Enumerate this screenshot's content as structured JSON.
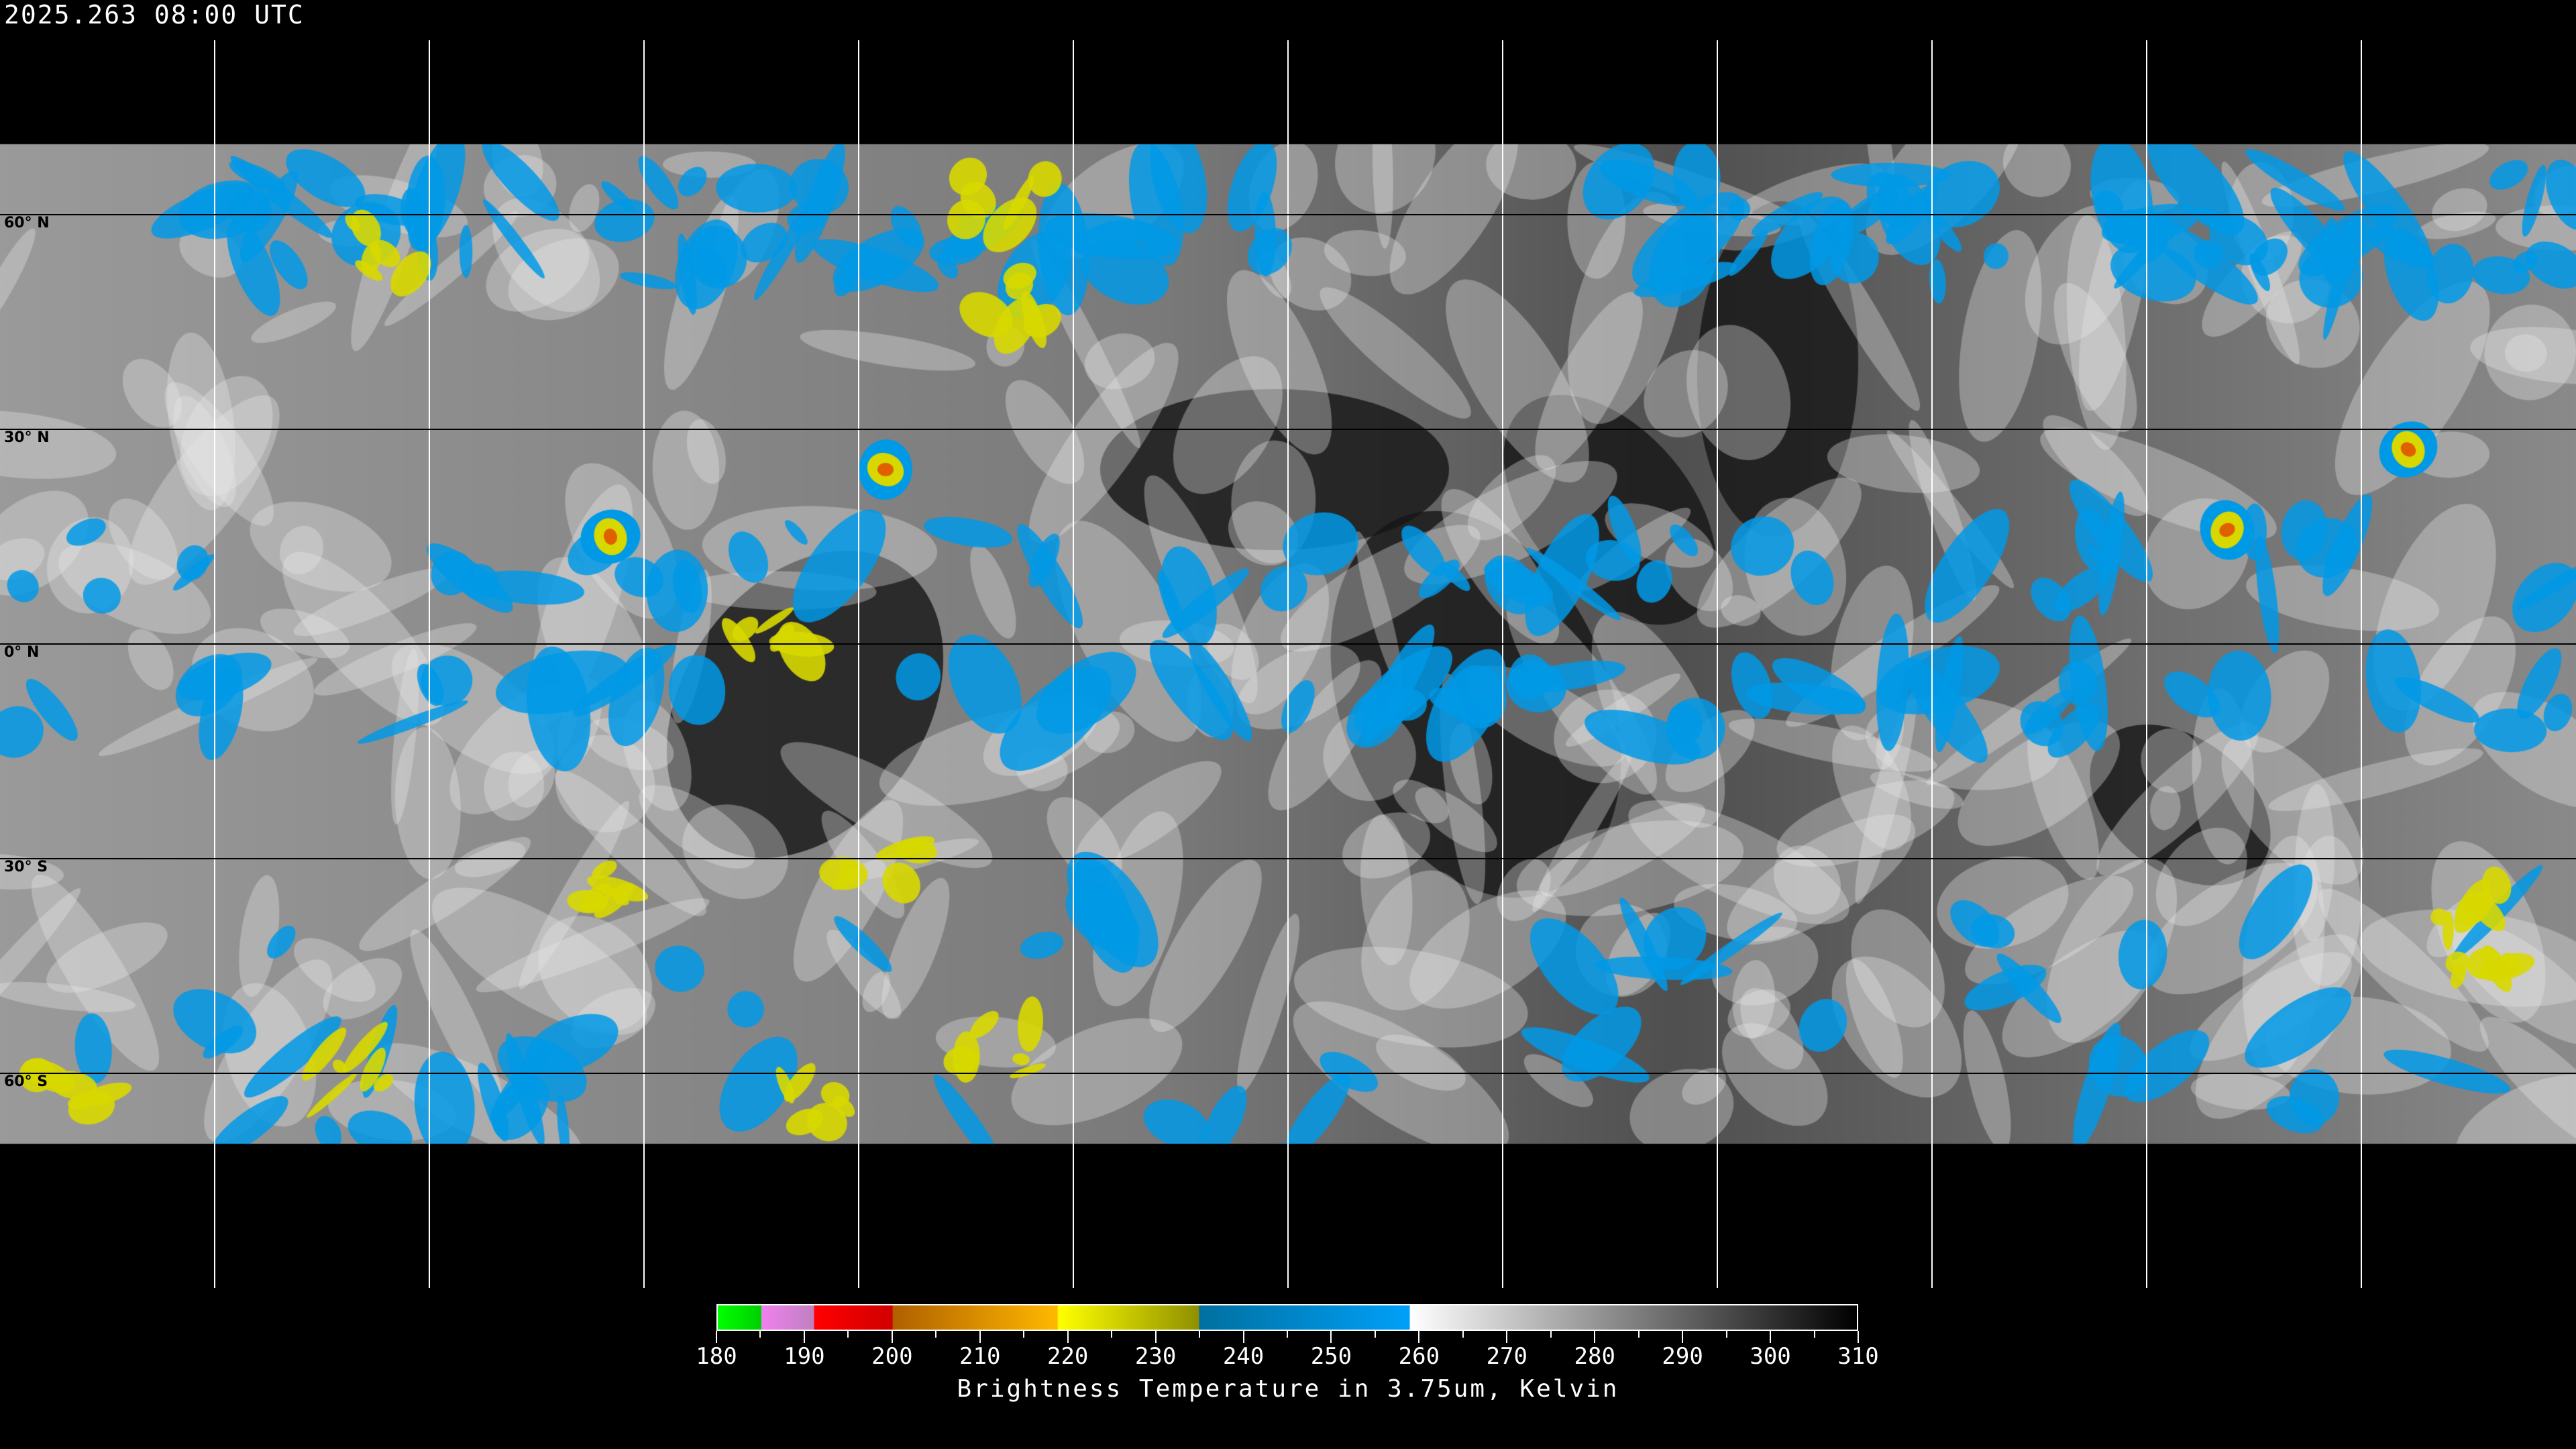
{
  "title": "2025.263 08:00 UTC",
  "latitude_labels": [
    "60° N",
    "30° N",
    "0° N",
    "30° S",
    "60° S"
  ],
  "colorbar": {
    "title": "Brightness Temperature in 3.75um, Kelvin",
    "ticks": [
      "180",
      "190",
      "200",
      "210",
      "220",
      "230",
      "240",
      "250",
      "260",
      "270",
      "280",
      "290",
      "300",
      "310"
    ],
    "range": [
      180,
      310
    ],
    "segments": [
      {
        "from": 180,
        "to": 185,
        "colors": [
          "#00ff00",
          "#00d000"
        ]
      },
      {
        "from": 185,
        "to": 191,
        "colors": [
          "#f080f0",
          "#c080c0"
        ]
      },
      {
        "from": 191,
        "to": 200,
        "colors": [
          "#ff0000",
          "#d00000"
        ]
      },
      {
        "from": 200,
        "to": 219,
        "colors": [
          "#b06000",
          "#ffb800"
        ]
      },
      {
        "from": 219,
        "to": 235,
        "colors": [
          "#ffff00",
          "#909000"
        ]
      },
      {
        "from": 235,
        "to": 259,
        "colors": [
          "#0070a0",
          "#00a0f8"
        ]
      },
      {
        "from": 259,
        "to": 310,
        "colors": [
          "#ffffff",
          "#000000"
        ]
      }
    ]
  },
  "map": {
    "projection": "equirectangular",
    "graticule_spacing_deg": 30,
    "background": "#000000",
    "gridline_color": "#ffffff"
  }
}
